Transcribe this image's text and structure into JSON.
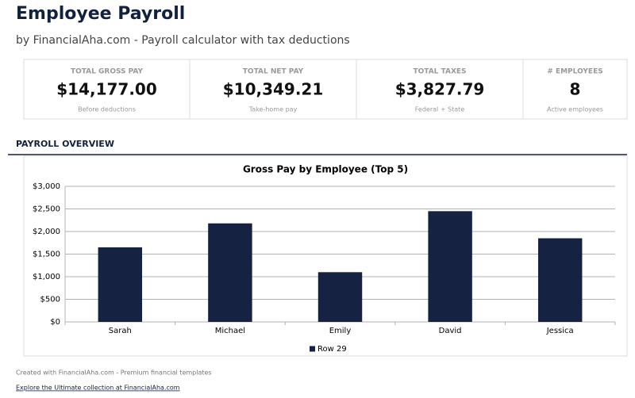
{
  "header": {
    "title": "Employee Payroll",
    "subtitle": "by FinancialAha.com - Payroll calculator with tax deductions"
  },
  "kpis": [
    {
      "label": "TOTAL GROSS PAY",
      "value": "$14,177.00",
      "note": "Before deductions"
    },
    {
      "label": "TOTAL NET PAY",
      "value": "$10,349.21",
      "note": "Take-home pay"
    },
    {
      "label": "TOTAL TAXES",
      "value": "$3,827.79",
      "note": "Federal + State"
    },
    {
      "label": "# EMPLOYEES",
      "value": "8",
      "note": "Active employees"
    }
  ],
  "section": {
    "title": "PAYROLL OVERVIEW"
  },
  "chart_data": {
    "type": "bar",
    "title": "Gross Pay by Employee (Top 5)",
    "categories": [
      "Sarah",
      "Michael",
      "Emily",
      "David",
      "Jessica"
    ],
    "series": [
      {
        "name": "Row 29",
        "color": "#152241",
        "values": [
          1650,
          2180,
          1100,
          2450,
          1850
        ]
      }
    ],
    "ylim": [
      0,
      3000
    ],
    "yticks": [
      {
        "value": 0,
        "label": "$0"
      },
      {
        "value": 500,
        "label": "$500"
      },
      {
        "value": 1000,
        "label": "$1,000"
      },
      {
        "value": 1500,
        "label": "$1,500"
      },
      {
        "value": 2000,
        "label": "$2,000"
      },
      {
        "value": 2500,
        "label": "$2,500"
      },
      {
        "value": 3000,
        "label": "$3,000"
      }
    ],
    "grid": true,
    "legend": "bottom"
  },
  "footer": {
    "credit": "Created with FinancialAha.com - Premium financial templates",
    "link": "Explore the Ultimate collection at FinancialAha.com"
  }
}
